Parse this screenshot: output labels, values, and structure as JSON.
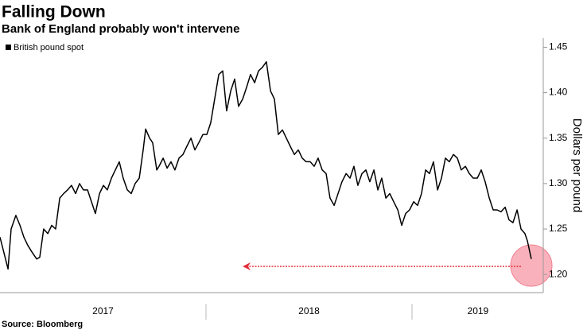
{
  "chart_data": {
    "type": "line",
    "title": "Falling Down",
    "subtitle": "Bank of England probably won't intervene",
    "y_axis_label": "Dollars per pound",
    "source": "Source: Bloomberg",
    "x": [
      2017.0,
      2017.019,
      2017.039,
      2017.054,
      2017.077,
      2017.097,
      2017.116,
      2017.135,
      2017.154,
      2017.178,
      2017.193,
      2017.212,
      2017.232,
      2017.251,
      2017.27,
      2017.29,
      2017.309,
      2017.328,
      2017.347,
      2017.367,
      2017.386,
      2017.405,
      2017.425,
      2017.444,
      2017.463,
      2017.483,
      2017.502,
      2017.521,
      2017.541,
      2017.56,
      2017.579,
      2017.598,
      2017.618,
      2017.637,
      2017.656,
      2017.676,
      2017.695,
      2017.707,
      2017.726,
      2017.741,
      2017.761,
      2017.772,
      2017.792,
      2017.811,
      2017.83,
      2017.849,
      2017.869,
      2017.888,
      2017.907,
      2017.927,
      2017.946,
      2017.965,
      2017.985,
      2018.004,
      2018.023,
      2018.042,
      2018.062,
      2018.081,
      2018.1,
      2018.12,
      2018.139,
      2018.158,
      2018.178,
      2018.197,
      2018.216,
      2018.236,
      2018.255,
      2018.274,
      2018.293,
      2018.313,
      2018.332,
      2018.351,
      2018.371,
      2018.39,
      2018.409,
      2018.429,
      2018.448,
      2018.467,
      2018.486,
      2018.506,
      2018.525,
      2018.544,
      2018.564,
      2018.583,
      2018.602,
      2018.622,
      2018.641,
      2018.66,
      2018.68,
      2018.699,
      2018.718,
      2018.737,
      2018.757,
      2018.776,
      2018.795,
      2018.815,
      2018.834,
      2018.853,
      2018.873,
      2018.892,
      2018.911,
      2018.931,
      2018.95,
      2018.969,
      2018.988,
      2019.008,
      2019.027,
      2019.046,
      2019.066,
      2019.085,
      2019.104,
      2019.124,
      2019.143,
      2019.162,
      2019.181,
      2019.201,
      2019.22,
      2019.239,
      2019.259,
      2019.278,
      2019.297,
      2019.317,
      2019.336,
      2019.355,
      2019.375,
      2019.394,
      2019.413,
      2019.432,
      2019.452,
      2019.471,
      2019.49,
      2019.51,
      2019.529,
      2019.548,
      2019.56,
      2019.579
    ],
    "series": [
      {
        "name": "British pound spot",
        "color": "#000000",
        "values": [
          1.241,
          1.224,
          1.206,
          1.25,
          1.265,
          1.254,
          1.241,
          1.232,
          1.225,
          1.217,
          1.219,
          1.25,
          1.245,
          1.254,
          1.25,
          1.284,
          1.289,
          1.293,
          1.298,
          1.289,
          1.3,
          1.293,
          1.293,
          1.28,
          1.267,
          1.289,
          1.298,
          1.293,
          1.306,
          1.315,
          1.324,
          1.306,
          1.293,
          1.289,
          1.3,
          1.306,
          1.337,
          1.36,
          1.35,
          1.345,
          1.315,
          1.319,
          1.328,
          1.317,
          1.324,
          1.315,
          1.328,
          1.332,
          1.341,
          1.35,
          1.337,
          1.345,
          1.354,
          1.354,
          1.367,
          1.393,
          1.42,
          1.424,
          1.38,
          1.402,
          1.415,
          1.385,
          1.393,
          1.406,
          1.42,
          1.411,
          1.424,
          1.428,
          1.434,
          1.402,
          1.393,
          1.354,
          1.359,
          1.35,
          1.341,
          1.332,
          1.337,
          1.328,
          1.324,
          1.324,
          1.319,
          1.328,
          1.315,
          1.311,
          1.284,
          1.276,
          1.289,
          1.302,
          1.311,
          1.306,
          1.319,
          1.298,
          1.311,
          1.315,
          1.302,
          1.315,
          1.293,
          1.306,
          1.284,
          1.289,
          1.28,
          1.271,
          1.254,
          1.267,
          1.271,
          1.28,
          1.276,
          1.289,
          1.315,
          1.311,
          1.324,
          1.293,
          1.306,
          1.328,
          1.324,
          1.332,
          1.328,
          1.315,
          1.319,
          1.311,
          1.306,
          1.306,
          1.315,
          1.302,
          1.284,
          1.271,
          1.271,
          1.269,
          1.274,
          1.26,
          1.257,
          1.271,
          1.25,
          1.245,
          1.237,
          1.217
        ]
      }
    ],
    "xlim": [
      2017,
      2019.637
    ],
    "xticks": [
      {
        "value": 2017.5,
        "label": "2017"
      },
      {
        "value": 2018.5,
        "label": "2018"
      },
      {
        "value": 2019.32,
        "label": "2019"
      }
    ],
    "x_dividers": [
      2018,
      2019
    ],
    "ylim": [
      1.18,
      1.46
    ],
    "yticks": [
      {
        "value": 1.2,
        "label": "1.20"
      },
      1.25,
      {
        "value": 1.3,
        "label": "1.30"
      },
      1.35,
      {
        "value": 1.4,
        "label": "1.40"
      },
      1.45
    ],
    "grid": false,
    "legend": "top-left"
  }
}
